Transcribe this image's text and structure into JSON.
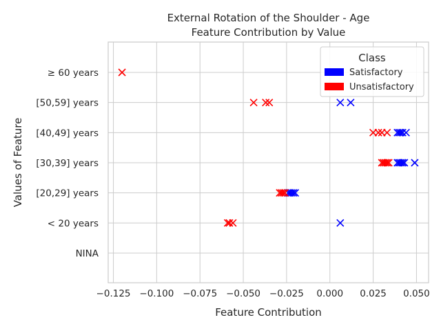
{
  "chart_data": {
    "type": "scatter",
    "title_lines": [
      "External Rotation of the Shoulder - Age",
      "Feature Contribution by Value"
    ],
    "xlabel": "Feature Contribution",
    "ylabel": "Values of Feature",
    "xlim": [
      -0.128,
      0.057
    ],
    "xticks": [
      -0.125,
      -0.1,
      -0.075,
      -0.05,
      -0.025,
      0.0,
      0.025,
      0.05
    ],
    "xtick_labels": [
      "−0.125",
      "−0.100",
      "−0.075",
      "−0.050",
      "−0.025",
      "0.000",
      "0.025",
      "0.050"
    ],
    "categories": [
      "NINA",
      "< 20 years",
      "[20,29] years",
      "[30,39] years",
      "[40,49] years",
      "[50,59] years",
      "≥ 60 years"
    ],
    "grid": true,
    "legend": {
      "title": "Class",
      "placement": "top-right",
      "entries": [
        {
          "label": "Satisfactory",
          "color": "#0000ff"
        },
        {
          "label": "Unsatisfactory",
          "color": "#ff0000"
        }
      ]
    },
    "series": [
      {
        "name": "Satisfactory",
        "color": "#0000ff",
        "points": [
          {
            "category": "< 20 years",
            "x": 0.006
          },
          {
            "category": "[20,29] years",
            "x": -0.024
          },
          {
            "category": "[20,29] years",
            "x": -0.023
          },
          {
            "category": "[20,29] years",
            "x": -0.022
          },
          {
            "category": "[20,29] years",
            "x": -0.021
          },
          {
            "category": "[20,29] years",
            "x": -0.02
          },
          {
            "category": "[30,39] years",
            "x": 0.039
          },
          {
            "category": "[30,39] years",
            "x": 0.04
          },
          {
            "category": "[30,39] years",
            "x": 0.041
          },
          {
            "category": "[30,39] years",
            "x": 0.042
          },
          {
            "category": "[30,39] years",
            "x": 0.043
          },
          {
            "category": "[30,39] years",
            "x": 0.049
          },
          {
            "category": "[40,49] years",
            "x": 0.039
          },
          {
            "category": "[40,49] years",
            "x": 0.04
          },
          {
            "category": "[40,49] years",
            "x": 0.041
          },
          {
            "category": "[40,49] years",
            "x": 0.042
          },
          {
            "category": "[40,49] years",
            "x": 0.044
          },
          {
            "category": "[50,59] years",
            "x": 0.006
          },
          {
            "category": "[50,59] years",
            "x": 0.012
          }
        ]
      },
      {
        "name": "Unsatisfactory",
        "color": "#ff0000",
        "points": [
          {
            "category": "< 20 years",
            "x": -0.059
          },
          {
            "category": "< 20 years",
            "x": -0.058
          },
          {
            "category": "< 20 years",
            "x": -0.056
          },
          {
            "category": "[20,29] years",
            "x": -0.029
          },
          {
            "category": "[20,29] years",
            "x": -0.028
          },
          {
            "category": "[20,29] years",
            "x": -0.027
          },
          {
            "category": "[20,29] years",
            "x": -0.026
          },
          {
            "category": "[30,39] years",
            "x": 0.03
          },
          {
            "category": "[30,39] years",
            "x": 0.031
          },
          {
            "category": "[30,39] years",
            "x": 0.032
          },
          {
            "category": "[30,39] years",
            "x": 0.033
          },
          {
            "category": "[30,39] years",
            "x": 0.034
          },
          {
            "category": "[40,49] years",
            "x": 0.025
          },
          {
            "category": "[40,49] years",
            "x": 0.028
          },
          {
            "category": "[40,49] years",
            "x": 0.03
          },
          {
            "category": "[40,49] years",
            "x": 0.033
          },
          {
            "category": "[50,59] years",
            "x": -0.044
          },
          {
            "category": "[50,59] years",
            "x": -0.037
          },
          {
            "category": "[50,59] years",
            "x": -0.035
          },
          {
            "category": "≥ 60 years",
            "x": -0.12
          }
        ]
      }
    ]
  }
}
